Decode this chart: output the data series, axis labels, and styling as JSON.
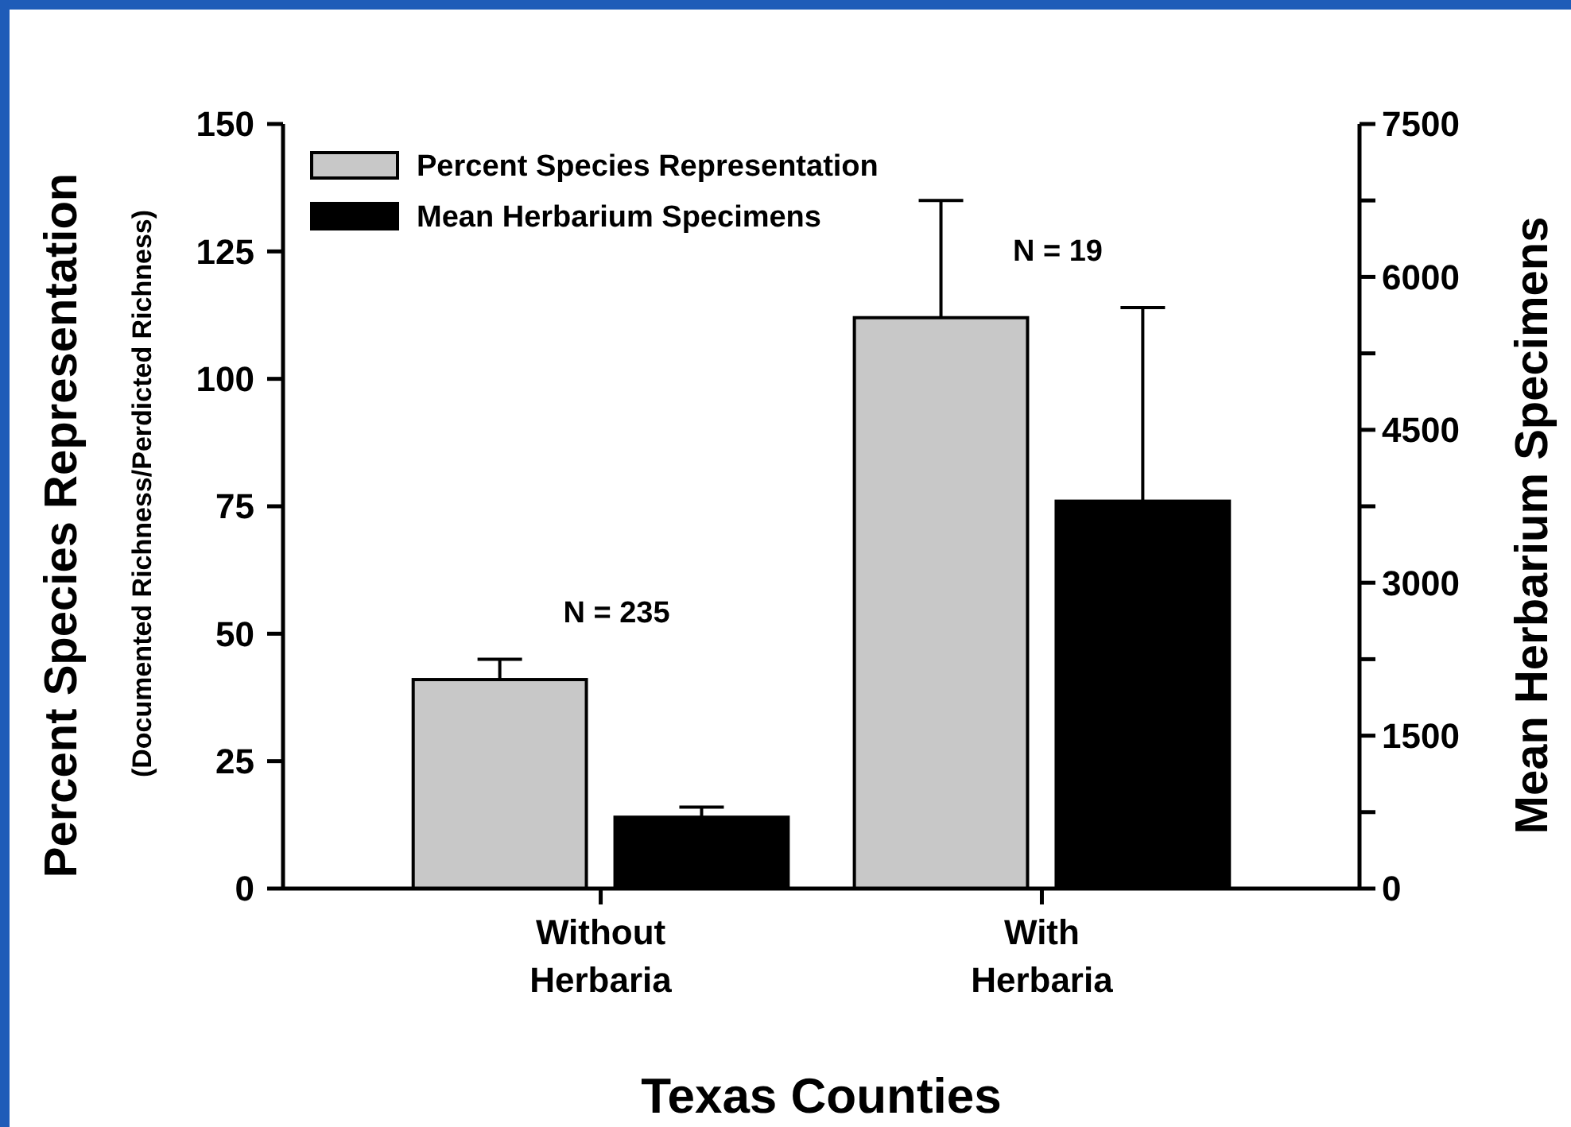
{
  "chart_data": {
    "type": "bar",
    "xlabel": "Texas Counties",
    "ylabel": "Percent Species Representation\n(Documented Richness/Perdicted Richness)",
    "y2label": "Mean Herbarium Specimens",
    "categories": [
      "Without\nHerbaria",
      "With\nHerbaria"
    ],
    "series": [
      {
        "name": "Percent Species Representation",
        "color": "#c8c8c8",
        "values": [
          41,
          112
        ],
        "errors": [
          [
            41,
            45
          ],
          [
            112,
            135
          ]
        ]
      },
      {
        "name": "Mean Herbarium Specimens",
        "color": "#000000",
        "values": [
          700,
          3800
        ],
        "errors": [
          [
            700,
            800
          ],
          [
            3800,
            5700
          ]
        ],
        "axis": "y2"
      }
    ],
    "ylim": [
      0,
      150
    ],
    "yticks": [
      0,
      25,
      50,
      75,
      100,
      125,
      150
    ],
    "y2lim": [
      0,
      7500
    ],
    "y2ticks": [
      0,
      {
        "value": 750,
        "label": null
      },
      1500,
      {
        "value": 2250,
        "label": null
      },
      3000,
      {
        "value": 3750,
        "label": null
      },
      4500,
      {
        "value": 5250,
        "label": null
      },
      6000,
      {
        "value": 6750,
        "label": null
      },
      7500
    ],
    "annotations": [
      "N = 235",
      "N = 19"
    ],
    "legend": "top left",
    "grid": false
  }
}
